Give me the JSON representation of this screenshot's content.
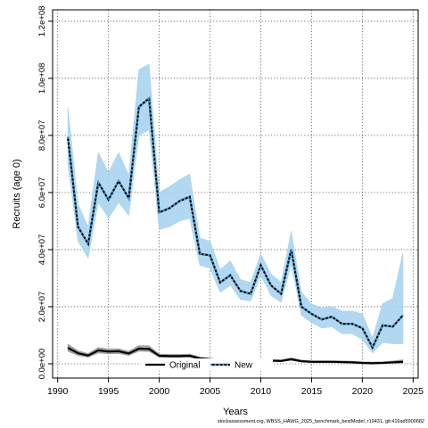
{
  "chart_data": {
    "type": "line",
    "xlabel": "Years",
    "ylabel": "Recruits (age 0)",
    "xlim": [
      1989.5,
      2025.5
    ],
    "ylim": [
      -5000000,
      124000000
    ],
    "x_ticks": [
      1990,
      1995,
      2000,
      2005,
      2010,
      2015,
      2020,
      2025
    ],
    "x_tick_labels": [
      "1990",
      "1995",
      "2000",
      "2005",
      "2010",
      "2015",
      "2020",
      "2025"
    ],
    "y_ticks": [
      0,
      20000000,
      40000000,
      60000000,
      80000000,
      100000000,
      120000000
    ],
    "y_tick_labels": [
      "0.0e+00",
      "2.0e+07",
      "4.0e+07",
      "6.0e+07",
      "8.0e+07",
      "1.0e+08",
      "1.2e+08"
    ],
    "grid": true,
    "legend_position": "bottom-center",
    "x": [
      1991,
      1992,
      1993,
      1994,
      1995,
      1996,
      1997,
      1998,
      1999,
      2000,
      2001,
      2002,
      2003,
      2004,
      2005,
      2006,
      2007,
      2008,
      2009,
      2010,
      2011,
      2012,
      2013,
      2014,
      2015,
      2016,
      2017,
      2018,
      2019,
      2020,
      2021,
      2022,
      2023,
      2024
    ],
    "series": [
      {
        "name": "Original",
        "color": "#000000",
        "band_color": "#9a9a9a",
        "values": [
          5600000,
          3700000,
          2900000,
          4700000,
          4300000,
          4400000,
          3600000,
          5300000,
          5200000,
          2800000,
          2700000,
          2700000,
          2800000,
          1900000,
          1600000,
          1200000,
          1100000,
          1000000,
          900000,
          1400000,
          1100000,
          1000000,
          1600000,
          900000,
          700000,
          700000,
          700000,
          600000,
          500000,
          300000,
          200000,
          300000,
          500000,
          700000
        ],
        "lower": [
          4400000,
          2900000,
          2300000,
          3800000,
          3500000,
          3600000,
          2900000,
          4400000,
          4300000,
          2300000,
          2200000,
          2200000,
          2300000,
          1500000,
          1200000,
          900000,
          800000,
          700000,
          600000,
          1000000,
          800000,
          700000,
          1200000,
          600000,
          500000,
          400000,
          400000,
          300000,
          200000,
          100000,
          0,
          100000,
          200000,
          300000
        ],
        "upper": [
          6900000,
          4600000,
          3600000,
          5700000,
          5200000,
          5300000,
          4400000,
          6400000,
          6300000,
          3400000,
          3300000,
          3300000,
          3400000,
          2400000,
          2000000,
          1600000,
          1500000,
          1400000,
          1300000,
          1900000,
          1500000,
          1400000,
          2100000,
          1300000,
          1000000,
          1000000,
          1000000,
          1000000,
          900000,
          700000,
          600000,
          700000,
          1000000,
          1400000
        ]
      },
      {
        "name": "New",
        "color": "#00008b",
        "band_color": "#a8d4ee",
        "values": [
          79500000,
          48000000,
          42000000,
          63500000,
          57500000,
          64000000,
          58000000,
          90000000,
          93000000,
          53000000,
          54500000,
          57000000,
          58500000,
          38500000,
          38000000,
          28500000,
          31000000,
          25500000,
          24500000,
          34500000,
          27500000,
          24500000,
          40000000,
          20000000,
          17500000,
          15500000,
          16500000,
          14000000,
          14000000,
          12500000,
          5700000,
          13500000,
          13000000,
          17000000
        ],
        "lower": [
          70000000,
          43000000,
          37000000,
          56500000,
          51000000,
          56500000,
          52000000,
          80000000,
          82000000,
          47000000,
          48000000,
          50000000,
          51000000,
          34500000,
          33500000,
          25000000,
          27500000,
          22500000,
          22000000,
          31000000,
          24000000,
          21500000,
          35000000,
          17000000,
          14500000,
          12500000,
          13000000,
          10500000,
          10500000,
          8500000,
          3800000,
          7500000,
          7000000,
          7000000
        ],
        "upper": [
          90000000,
          56000000,
          48000000,
          74000000,
          67000000,
          74000000,
          66000000,
          103000000,
          105000000,
          60000000,
          62000000,
          64500000,
          66500000,
          44000000,
          43000000,
          33000000,
          36000000,
          29500000,
          28500000,
          38500000,
          31500000,
          28500000,
          46500000,
          25000000,
          21000000,
          19500000,
          20000000,
          18500000,
          18500000,
          17500000,
          9000000,
          21000000,
          23000000,
          39000000
        ]
      }
    ]
  },
  "footer": "stockassessment.org, WBSS_HAWG_2025_benchmark_bestModel, r19431, git:416ad5900682"
}
